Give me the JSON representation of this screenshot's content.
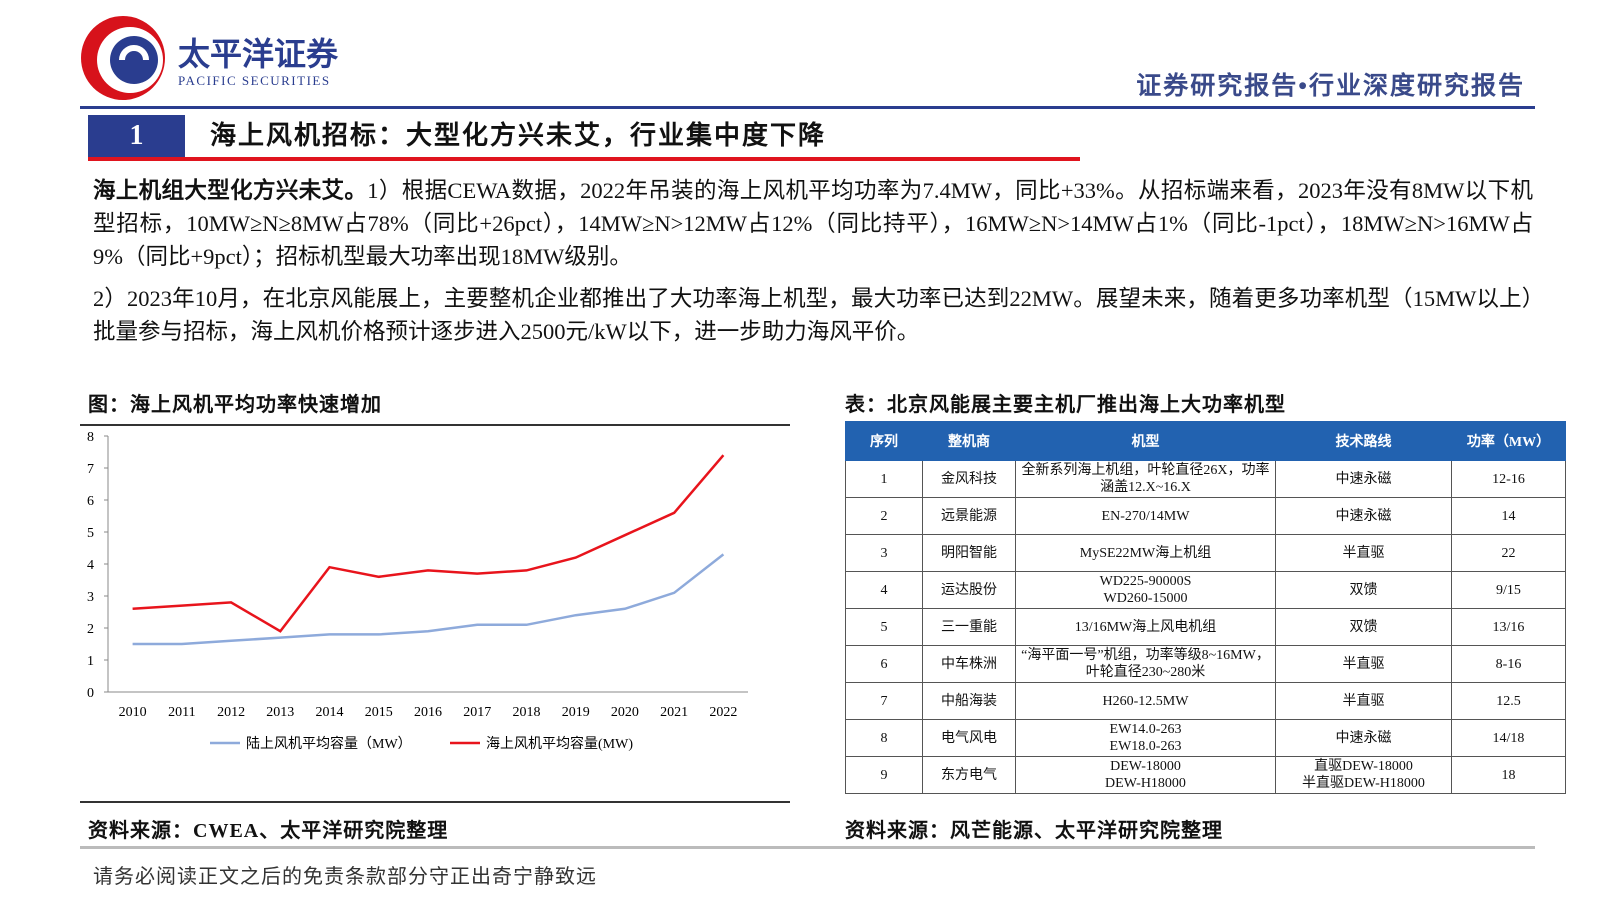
{
  "header": {
    "logo_cn": "太平洋证券",
    "logo_en": "PACIFIC SECURITIES",
    "report_type": "证券研究报告•行业深度研究报告"
  },
  "section": {
    "number": "1",
    "title": "海上风机招标：大型化方兴未艾，行业集中度下降"
  },
  "paragraphs": [
    {
      "lead": "海上机组大型化方兴未艾。",
      "text": "1）根据CEWA数据，2022年吊装的海上风机平均功率为7.4MW，同比+33%。从招标端来看，2023年没有8MW以下机型招标，10MW≥N≥8MW占78%（同比+26pct），14MW≥N>12MW占12%（同比持平），16MW≥N>14MW占1%（同比-1pct），18MW≥N>16MW占9%（同比+9pct）；招标机型最大功率出现18MW级别。"
    },
    {
      "text": "2）2023年10月，在北京风能展上，主要整机企业都推出了大功率海上机型，最大功率已达到22MW。展望未来，随着更多功率机型（15MW以上）批量参与招标，海上风机价格预计逐步进入2500元/kW以下，进一步助力海风平价。"
    }
  ],
  "figure": {
    "caption": "图：海上风机平均功率快速增加",
    "source": "资料来源：CWEA、太平洋研究院整理"
  },
  "chart_data": {
    "type": "line",
    "categories": [
      "2010",
      "2011",
      "2012",
      "2013",
      "2014",
      "2015",
      "2016",
      "2017",
      "2018",
      "2019",
      "2020",
      "2021",
      "2022"
    ],
    "series": [
      {
        "name": "陆上风机平均容量（MW）",
        "color": "#8eaadb",
        "values": [
          1.5,
          1.5,
          1.6,
          1.7,
          1.8,
          1.8,
          1.9,
          2.1,
          2.1,
          2.4,
          2.6,
          3.1,
          4.3
        ]
      },
      {
        "name": "海上风机平均容量(MW)",
        "color": "#e8141c",
        "values": [
          2.6,
          2.7,
          2.8,
          1.9,
          3.9,
          3.6,
          3.8,
          3.7,
          3.8,
          4.2,
          4.9,
          5.6,
          7.4
        ]
      }
    ],
    "ylim": [
      0,
      8
    ],
    "yticks": [
      0,
      1,
      2,
      3,
      4,
      5,
      6,
      7,
      8
    ],
    "grid": false,
    "legend": "bottom"
  },
  "table": {
    "caption": "表：北京风能展主要主机厂推出海上大功率机型",
    "source": "资料来源：风芒能源、太平洋研究院整理",
    "header": [
      "序列",
      "整机商",
      "机型",
      "技术路线",
      "功率（MW）"
    ],
    "rows": [
      [
        1,
        "金风科技",
        "全新系列海上机组，叶轮直径26X，功率涵盖12.X~16.X",
        "中速永磁",
        "12-16"
      ],
      [
        2,
        "远景能源",
        "EN-270/14MW",
        "中速永磁",
        14
      ],
      [
        3,
        "明阳智能",
        "MySE22MW海上机组",
        "半直驱",
        22
      ],
      [
        4,
        "运达股份",
        [
          "WD225-90000S",
          "WD260-15000"
        ],
        "双馈",
        "9/15"
      ],
      [
        5,
        "三一重能",
        "13/16MW海上风电机组",
        "双馈",
        "13/16"
      ],
      [
        6,
        "中车株洲",
        "“海平面一号”机组，功率等级8~16MW，叶轮直径230~280米",
        "半直驱",
        "8-16"
      ],
      [
        7,
        "中船海装",
        "H260-12.5MW",
        "半直驱",
        12.5
      ],
      [
        8,
        "电气风电",
        [
          "EW14.0-263",
          "EW18.0-263"
        ],
        "中速永磁",
        "14/18"
      ],
      [
        9,
        "东方电气",
        [
          "DEW-18000",
          "DEW-H18000"
        ],
        [
          "直驱DEW-18000",
          "半直驱DEW-H18000"
        ],
        18
      ]
    ]
  },
  "footer": "请务必阅读正文之后的免责条款部分守正出奇宁静致远"
}
